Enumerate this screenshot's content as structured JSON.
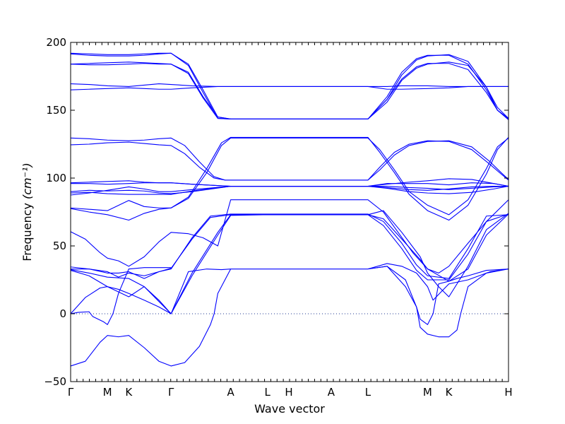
{
  "chart_data": {
    "type": "line",
    "title": "",
    "xlabel": "Wave vector",
    "ylabel": "Frequency",
    "ylabel_unit": "(cm⁻¹)",
    "ylim": [
      -50,
      200
    ],
    "yticks": [
      -50,
      0,
      50,
      100,
      150,
      200
    ],
    "grid": false,
    "zero_line": true,
    "line_color": "#0000ff",
    "x_symmetry_points": [
      {
        "label": "Γ",
        "x": 0.0
      },
      {
        "label": "M",
        "x": 1.0
      },
      {
        "label": "K",
        "x": 1.58
      },
      {
        "label": "Γ",
        "x": 2.73
      },
      {
        "label": "A",
        "x": 4.35
      },
      {
        "label": "L",
        "x": 5.35
      },
      {
        "label": "H",
        "x": 5.93
      },
      {
        "label": "A",
        "x": 7.08
      },
      {
        "label": "L",
        "x": 8.08
      },
      {
        "label": "M",
        "x": 9.7
      },
      {
        "label": "K",
        "x": 10.28
      },
      {
        "label": "H",
        "x": 11.9
      }
    ],
    "series": [
      {
        "x": [
          0,
          0.5,
          1.0,
          1.58,
          2.0,
          2.4,
          2.73,
          3.2,
          3.6,
          4.0,
          4.35,
          5.35,
          5.93,
          7.08,
          8.08,
          8.6,
          9.0,
          9.4,
          9.7,
          10.28,
          10.8,
          11.3,
          11.6,
          11.9
        ],
        "y": [
          192,
          191.5,
          191,
          191,
          191.5,
          192,
          192,
          184,
          165,
          145,
          143.5,
          143.5,
          143.5,
          143.5,
          143.5,
          160,
          178,
          188,
          190.5,
          190.5,
          184,
          165,
          150,
          144
        ]
      },
      {
        "x": [
          0,
          0.5,
          1.0,
          1.58,
          2.0,
          2.4,
          2.73,
          3.2,
          3.6,
          4.0,
          4.35,
          5.35,
          5.93,
          7.08,
          8.08,
          8.6,
          9.0,
          9.4,
          9.7,
          10.28,
          10.8,
          11.3,
          11.6,
          11.9
        ],
        "y": [
          191.5,
          190.5,
          190,
          190,
          190.5,
          191.5,
          192,
          183,
          163,
          144,
          143.5,
          143.5,
          143.5,
          143.5,
          143.5,
          158,
          176,
          187,
          190,
          191,
          186,
          167,
          150,
          143
        ]
      },
      {
        "x": [
          0,
          0.5,
          1.0,
          1.58,
          2.0,
          2.4,
          2.73,
          3.2,
          3.6,
          4.0,
          4.35,
          5.35,
          5.93,
          7.08,
          8.08,
          8.6,
          9.0,
          9.4,
          9.7,
          10.28,
          10.8,
          11.3,
          11.6,
          11.9
        ],
        "y": [
          184,
          184.5,
          185,
          185.5,
          185,
          184.5,
          184,
          178,
          160,
          145,
          143.5,
          143.5,
          143.5,
          143.5,
          143.5,
          158,
          173,
          182,
          184.5,
          184.5,
          180,
          163,
          150,
          143.5
        ]
      },
      {
        "x": [
          0,
          0.5,
          1.0,
          1.58,
          2.0,
          2.4,
          2.73,
          3.2,
          3.6,
          4.0,
          4.35,
          5.35,
          5.93,
          7.08,
          8.08,
          8.6,
          9.0,
          9.4,
          9.7,
          10.28,
          10.8,
          11.3,
          11.6,
          11.9
        ],
        "y": [
          184,
          183.5,
          183.5,
          184,
          184.5,
          184,
          184,
          177,
          159,
          144,
          143.5,
          143.5,
          143.5,
          143.5,
          143.5,
          156,
          172,
          181,
          184,
          185.5,
          183,
          167,
          152,
          144
        ]
      },
      {
        "x": [
          0,
          0.5,
          1.0,
          1.58,
          2.0,
          2.4,
          2.73,
          3.3,
          4.0,
          4.35,
          5.35,
          5.93,
          7.08,
          8.08,
          8.6,
          9.0,
          9.7,
          10.28,
          10.8,
          11.3,
          11.9
        ],
        "y": [
          169.5,
          169,
          168,
          167.5,
          168.5,
          169.5,
          169,
          168,
          167.5,
          167.5,
          167.5,
          167.5,
          167.5,
          167.5,
          167.5,
          168,
          168,
          167.5,
          167.5,
          167.5,
          167.5
        ]
      },
      {
        "x": [
          0,
          0.5,
          1.0,
          1.58,
          2.0,
          2.4,
          2.73,
          3.3,
          4.0,
          4.35,
          5.35,
          5.93,
          7.08,
          8.08,
          8.6,
          9.0,
          9.7,
          10.28,
          10.8,
          11.3,
          11.9
        ],
        "y": [
          165,
          165.5,
          166,
          166.5,
          166,
          165.5,
          165.5,
          166.5,
          167.5,
          167.5,
          167.5,
          167.5,
          167.5,
          167.5,
          165.5,
          165.5,
          166,
          166.5,
          167.5,
          167.5,
          167.5
        ]
      },
      {
        "x": [
          0,
          0.5,
          1.0,
          1.58,
          2.0,
          2.4,
          2.73,
          3.1,
          3.5,
          3.9,
          4.2,
          4.35,
          5.35,
          5.93,
          7.08,
          8.08,
          8.4,
          8.8,
          9.2,
          9.7,
          10.28,
          10.9,
          11.4,
          11.7,
          11.9
        ],
        "y": [
          129.5,
          129,
          128,
          127.5,
          128,
          129,
          129.5,
          124,
          112,
          101,
          98.5,
          98.5,
          98.5,
          98.5,
          98.5,
          98.5,
          106,
          117,
          124,
          127,
          127.5,
          123,
          112,
          104,
          99
        ]
      },
      {
        "x": [
          0,
          0.5,
          1.0,
          1.58,
          2.0,
          2.4,
          2.73,
          3.1,
          3.5,
          3.9,
          4.2,
          4.35,
          5.35,
          5.93,
          7.08,
          8.08,
          8.4,
          8.8,
          9.2,
          9.7,
          10.28,
          10.9,
          11.4,
          11.7,
          11.9
        ],
        "y": [
          124.5,
          125,
          126,
          126.5,
          125.5,
          124.5,
          124,
          118,
          108,
          100,
          98.5,
          98.5,
          98.5,
          98.5,
          98.5,
          98.5,
          108,
          119,
          125,
          127.5,
          127,
          121,
          110,
          103,
          98.5
        ]
      },
      {
        "x": [
          0,
          0.5,
          1.0,
          1.58,
          2.0,
          2.4,
          2.73,
          3.3,
          4.35,
          5.35,
          5.93,
          7.08,
          8.08,
          8.6,
          9.2,
          9.7,
          10.28,
          10.9,
          11.5,
          11.9
        ],
        "y": [
          96.5,
          97,
          97.5,
          98,
          97,
          96.5,
          96.5,
          95.5,
          94,
          94,
          94,
          94,
          94,
          95.5,
          97,
          98,
          99.5,
          99,
          96,
          94
        ]
      },
      {
        "x": [
          0,
          0.5,
          1.0,
          1.58,
          2.0,
          2.4,
          2.73,
          3.3,
          4.35,
          5.35,
          5.93,
          7.08,
          8.08,
          8.6,
          9.2,
          9.7,
          10.28,
          10.9,
          11.5,
          11.9
        ],
        "y": [
          96,
          96,
          95.5,
          96,
          96.5,
          96.5,
          96.5,
          95.5,
          94,
          94,
          94,
          94,
          94,
          96,
          96,
          96,
          95,
          96.5,
          96,
          94
        ]
      },
      {
        "x": [
          0,
          0.5,
          1.0,
          1.58,
          2.0,
          2.4,
          2.73,
          3.3,
          4.35,
          5.35,
          5.93,
          7.08,
          8.08,
          8.6,
          9.2,
          9.7,
          10.28,
          10.9,
          11.5,
          11.9
        ],
        "y": [
          87.5,
          89,
          91,
          93.5,
          92,
          90,
          90,
          91.5,
          94,
          94,
          94,
          94,
          94,
          93,
          91.5,
          91,
          92,
          93.5,
          94,
          94
        ]
      },
      {
        "x": [
          0,
          0.5,
          1.0,
          1.58,
          2.0,
          2.4,
          2.73,
          3.3,
          4.35,
          5.35,
          5.93,
          7.08,
          8.08,
          8.6,
          9.2,
          9.7,
          10.28,
          10.9,
          11.5,
          11.9
        ],
        "y": [
          89,
          89.5,
          88.5,
          88,
          88,
          88,
          88,
          90.5,
          94,
          94,
          94,
          94,
          94,
          92.5,
          90,
          89,
          88.5,
          89.5,
          92,
          94
        ]
      },
      {
        "x": [
          0,
          0.5,
          1.0,
          1.58,
          2.0,
          2.4,
          2.73,
          3.3,
          4.35,
          5.35,
          5.93,
          7.08,
          8.08,
          8.6,
          9.2,
          9.7,
          10.28,
          10.9,
          11.5,
          11.9
        ],
        "y": [
          90,
          91,
          90.5,
          91,
          90.5,
          89,
          88.5,
          90,
          94,
          94,
          94,
          94,
          94,
          94,
          93,
          92.5,
          91.5,
          92.5,
          93.5,
          94
        ]
      },
      {
        "x": [
          0,
          0.5,
          1.0,
          1.58,
          2.0,
          2.4,
          2.73,
          3.2,
          3.7,
          4.1,
          4.35,
          5.35,
          5.93,
          7.08,
          8.08,
          8.4,
          8.8,
          9.2,
          9.7,
          10.28,
          10.8,
          11.3,
          11.6,
          11.9
        ],
        "y": [
          78,
          77,
          76,
          83.5,
          79,
          78,
          78,
          86,
          107,
          126,
          130,
          130,
          130,
          130,
          130,
          119,
          104,
          88,
          76,
          69,
          80,
          103,
          121,
          130
        ]
      },
      {
        "x": [
          0,
          0.5,
          1.0,
          1.58,
          2.0,
          2.4,
          2.73,
          3.2,
          3.7,
          4.1,
          4.35,
          5.35,
          5.93,
          7.08,
          8.08,
          8.4,
          8.8,
          9.2,
          9.7,
          10.28,
          10.8,
          11.3,
          11.6,
          11.9
        ],
        "y": [
          77.5,
          75,
          73,
          69,
          74,
          77,
          78,
          85,
          104,
          124,
          129.5,
          129.5,
          129.5,
          129.5,
          129.5,
          121,
          106,
          90,
          80,
          73,
          84,
          107,
          123,
          129.5
        ]
      },
      {
        "x": [
          0,
          0.4,
          0.8,
          1.0,
          1.3,
          1.58,
          2.0,
          2.4,
          2.73,
          3.2,
          3.6,
          4.0,
          4.35,
          5.35,
          5.93,
          7.08,
          8.08,
          8.5,
          8.9,
          9.3,
          9.7,
          10.0,
          10.28,
          10.8,
          11.3,
          11.9
        ],
        "y": [
          60.5,
          55,
          45,
          41,
          39,
          35,
          42,
          53,
          60,
          59,
          56,
          50,
          84,
          84,
          84,
          84,
          84,
          75,
          60,
          45,
          33,
          30,
          35,
          52,
          68,
          84
        ]
      },
      {
        "x": [
          0,
          0.5,
          1.0,
          1.3,
          1.58,
          2.0,
          2.4,
          2.73,
          3.3,
          3.8,
          4.35,
          5.35,
          5.93,
          7.08,
          8.08,
          8.5,
          9.0,
          9.4,
          9.7,
          10.28,
          10.8,
          11.3,
          11.9
        ],
        "y": [
          34.5,
          33,
          31,
          27,
          30,
          28,
          31,
          33,
          56,
          72,
          73.5,
          73.5,
          73.5,
          73.5,
          73.5,
          68,
          52,
          36,
          28,
          26,
          48,
          72,
          73
        ]
      },
      {
        "x": [
          0,
          0.5,
          1.0,
          1.3,
          1.58,
          2.0,
          2.4,
          2.73,
          3.3,
          3.8,
          4.35,
          5.35,
          5.93,
          7.08,
          8.08,
          8.5,
          9.0,
          9.4,
          9.7,
          10.28,
          10.8,
          11.3,
          11.9
        ],
        "y": [
          33,
          33,
          30,
          30,
          31,
          26,
          31,
          33.5,
          55,
          71,
          73,
          73,
          73,
          73,
          73,
          65,
          48,
          32,
          25,
          25,
          44,
          68,
          73.5
        ]
      },
      {
        "x": [
          0,
          0.5,
          1.0,
          1.58,
          2.0,
          2.4,
          2.73,
          3.3,
          4.0,
          4.35,
          5.35,
          5.93,
          7.08,
          8.08,
          8.5,
          9.0,
          9.5,
          9.7,
          10.28,
          10.8,
          11.3,
          11.9
        ],
        "y": [
          32.5,
          30,
          27,
          26,
          20,
          9,
          0,
          30,
          60,
          73,
          73,
          73,
          73,
          73,
          70,
          55,
          40,
          33,
          24,
          33,
          58,
          73.5
        ]
      },
      {
        "x": [
          0,
          0.5,
          1.0,
          1.58,
          2.0,
          2.4,
          2.73,
          3.3,
          4.0,
          4.35,
          5.35,
          5.93,
          7.08,
          8.08,
          8.5,
          9.0,
          9.5,
          9.7,
          10.0,
          10.28,
          10.8,
          11.3,
          11.9
        ],
        "y": [
          32,
          28,
          20,
          12.5,
          20,
          10,
          0,
          28,
          58,
          72.5,
          73,
          73,
          73,
          73,
          76,
          60,
          42,
          30,
          20,
          12.5,
          35,
          62,
          74
        ]
      },
      {
        "x": [
          0,
          0.4,
          0.8,
          1.0,
          1.3,
          1.58,
          2.0,
          2.4,
          2.73,
          3.2,
          3.7,
          4.1,
          4.35,
          5.35,
          5.93,
          7.08,
          8.08,
          8.6,
          9.0,
          9.4,
          9.7,
          9.85,
          10.28,
          10.8,
          11.4,
          11.9
        ],
        "y": [
          0,
          12,
          19,
          20,
          18,
          15,
          10,
          5,
          0,
          31,
          33,
          32.5,
          33,
          33,
          33,
          33,
          33,
          37,
          35,
          30,
          20,
          10,
          22,
          25,
          31,
          33
        ]
      },
      {
        "x": [
          0,
          0.2,
          0.5,
          0.6,
          0.9,
          1.0,
          1.15,
          1.3,
          1.58,
          2.0,
          2.4,
          2.73
        ],
        "y": [
          0,
          1,
          1.5,
          -2,
          -6,
          -8,
          0,
          15,
          33,
          34,
          34,
          34
        ]
      },
      {
        "x": [
          0,
          0.4,
          0.8,
          1.0,
          1.3,
          1.58,
          2.0,
          2.4,
          2.73,
          3.1,
          3.5,
          3.8,
          3.9,
          4.0,
          4.35
        ],
        "y": [
          -38.5,
          -35,
          -21,
          -16,
          -17,
          -16,
          -25,
          -35,
          -38.5,
          -36,
          -24,
          -8,
          0,
          15,
          33
        ]
      },
      {
        "x": [
          8.08,
          8.6,
          9.1,
          9.4,
          9.5,
          9.7,
          9.85,
          10.0,
          10.28,
          10.5,
          10.8,
          11.3,
          11.9
        ],
        "y": [
          33,
          35,
          25,
          5,
          -4,
          -8,
          0,
          22,
          24,
          26,
          28,
          32,
          33
        ]
      },
      {
        "x": [
          8.08,
          8.6,
          9.1,
          9.4,
          9.5,
          9.7,
          10.0,
          10.28,
          10.5,
          10.6,
          10.8,
          11.3,
          11.9
        ],
        "y": [
          33,
          35,
          20,
          5,
          -10,
          -15,
          -17,
          -17,
          -12,
          0,
          20,
          30,
          33
        ]
      }
    ]
  }
}
